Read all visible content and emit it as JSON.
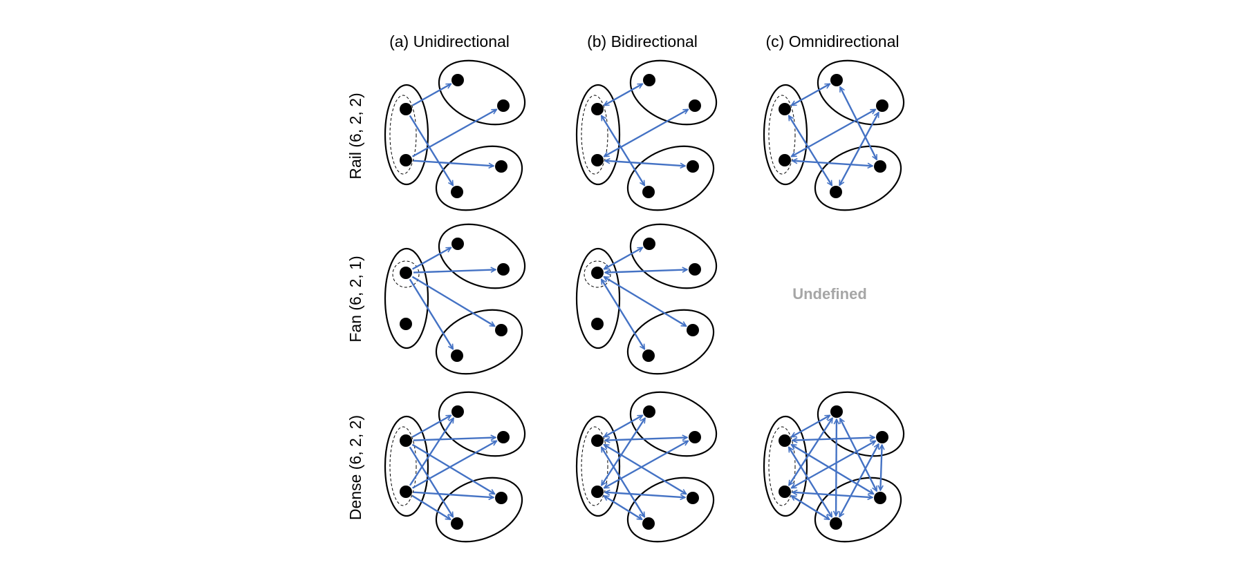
{
  "columns": [
    {
      "label": "(a) Unidirectional"
    },
    {
      "label": "(b) Bidirectional"
    },
    {
      "label": "(c) Omnidirectional"
    }
  ],
  "rows": [
    {
      "label": "Rail (6, 2, 2)"
    },
    {
      "label": "Fan (6, 2, 1)"
    },
    {
      "label": "Dense (6, 2, 2)"
    }
  ],
  "undefined_cell_text": "Undefined",
  "colors": {
    "edge": "#4472c4",
    "node": "#000000",
    "undefined_text": "#a6a6a6"
  },
  "panels": [
    {
      "id": "rail-uni",
      "row": 0,
      "col": 0,
      "dashed": "rail",
      "edges": [
        [
          0,
          2
        ],
        [
          0,
          5
        ],
        [
          1,
          3
        ],
        [
          1,
          4
        ]
      ],
      "directed": "one"
    },
    {
      "id": "rail-bi",
      "row": 0,
      "col": 1,
      "dashed": "rail",
      "edges": [
        [
          0,
          2
        ],
        [
          0,
          5
        ],
        [
          1,
          3
        ],
        [
          1,
          4
        ]
      ],
      "directed": "both"
    },
    {
      "id": "rail-omni",
      "row": 0,
      "col": 2,
      "dashed": "rail",
      "edges": [
        [
          0,
          2
        ],
        [
          0,
          5
        ],
        [
          1,
          3
        ],
        [
          1,
          4
        ],
        [
          2,
          4
        ],
        [
          3,
          5
        ]
      ],
      "directed": "both"
    },
    {
      "id": "fan-uni",
      "row": 1,
      "col": 0,
      "dashed": "fan",
      "edges": [
        [
          0,
          2
        ],
        [
          0,
          3
        ],
        [
          0,
          4
        ],
        [
          0,
          5
        ]
      ],
      "directed": "one"
    },
    {
      "id": "fan-bi",
      "row": 1,
      "col": 1,
      "dashed": "fan",
      "edges": [
        [
          0,
          2
        ],
        [
          0,
          3
        ],
        [
          0,
          4
        ],
        [
          0,
          5
        ]
      ],
      "directed": "both"
    },
    {
      "id": "dense-uni",
      "row": 2,
      "col": 0,
      "dashed": "rail",
      "edges": [
        [
          0,
          2
        ],
        [
          0,
          3
        ],
        [
          0,
          4
        ],
        [
          0,
          5
        ],
        [
          1,
          2
        ],
        [
          1,
          3
        ],
        [
          1,
          4
        ],
        [
          1,
          5
        ]
      ],
      "directed": "one"
    },
    {
      "id": "dense-bi",
      "row": 2,
      "col": 1,
      "dashed": "rail",
      "edges": [
        [
          0,
          2
        ],
        [
          0,
          3
        ],
        [
          0,
          4
        ],
        [
          0,
          5
        ],
        [
          1,
          2
        ],
        [
          1,
          3
        ],
        [
          1,
          4
        ],
        [
          1,
          5
        ]
      ],
      "directed": "both"
    },
    {
      "id": "dense-omni",
      "row": 2,
      "col": 2,
      "dashed": "rail",
      "edges": [
        [
          0,
          2
        ],
        [
          0,
          3
        ],
        [
          0,
          4
        ],
        [
          0,
          5
        ],
        [
          1,
          2
        ],
        [
          1,
          3
        ],
        [
          1,
          4
        ],
        [
          1,
          5
        ],
        [
          2,
          4
        ],
        [
          2,
          5
        ],
        [
          3,
          4
        ],
        [
          3,
          5
        ]
      ],
      "directed": "both"
    }
  ]
}
